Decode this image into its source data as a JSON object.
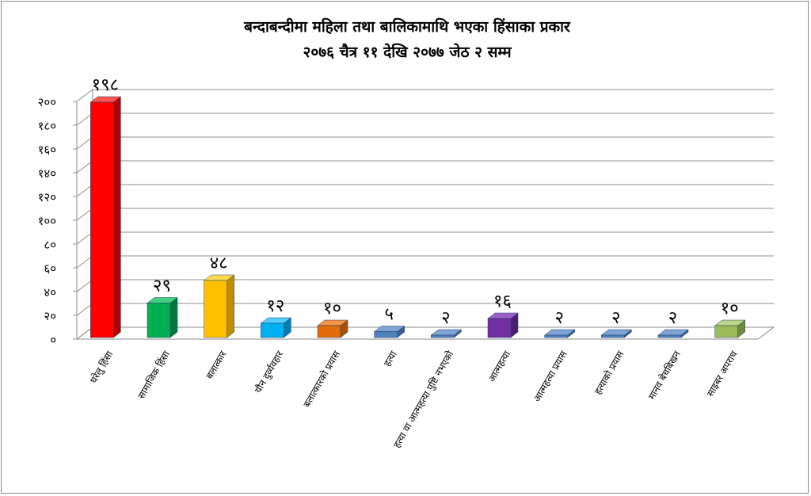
{
  "chart_data": {
    "type": "bar",
    "title": "बन्दाबन्दीमा महिला तथा बालिकामाथि भएका हिंसाका प्रकार",
    "subtitle": "२०७६ चैत्र ११ देखि २०७७ जेठ २ सम्म",
    "xlabel": "",
    "ylabel": "",
    "ylim": [
      0,
      200
    ],
    "yticks": [
      "०",
      "२०",
      "४०",
      "६०",
      "८०",
      "१००",
      "१२०",
      "१४०",
      "१६०",
      "१८०",
      "२००"
    ],
    "grid": true,
    "categories": [
      "घरेलु हिंसा",
      "सामाजिक हिंसा",
      "बलात्कार",
      "यौन दुर्व्यवहार",
      "बलात्कारको प्रयास",
      "हत्या",
      "हत्या वा आत्महत्या पुष्टि नभएको",
      "आत्महत्या",
      "आत्महत्या प्रयास",
      "हत्याको प्रयास",
      "मानव बेचबिखन",
      "साइबर अपराध"
    ],
    "values": [
      198,
      29,
      48,
      12,
      10,
      5,
      2,
      16,
      2,
      2,
      2,
      10
    ],
    "value_labels": [
      "१९८",
      "२९",
      "४८",
      "१२",
      "१०",
      "५",
      "२",
      "१६",
      "२",
      "२",
      "२",
      "१०"
    ],
    "colors": [
      {
        "front": "#ff0000",
        "side": "#b00000",
        "top": "#ff5050"
      },
      {
        "front": "#00b050",
        "side": "#007a36",
        "top": "#40d080"
      },
      {
        "front": "#ffc000",
        "side": "#c08e00",
        "top": "#ffd84d"
      },
      {
        "front": "#00b0f0",
        "side": "#007fb0",
        "top": "#55ccff"
      },
      {
        "front": "#e36c09",
        "side": "#a84f05",
        "top": "#f59445"
      },
      {
        "front": "#4f81bd",
        "side": "#365f90",
        "top": "#7ea3d4"
      },
      {
        "front": "#4f81bd",
        "side": "#365f90",
        "top": "#7ea3d4"
      },
      {
        "front": "#7030a0",
        "side": "#4e1f72",
        "top": "#9a60c8"
      },
      {
        "front": "#4f81bd",
        "side": "#365f90",
        "top": "#7ea3d4"
      },
      {
        "front": "#4f81bd",
        "side": "#365f90",
        "top": "#7ea3d4"
      },
      {
        "front": "#4f81bd",
        "side": "#365f90",
        "top": "#7ea3d4"
      },
      {
        "front": "#9bbb59",
        "side": "#6e8a3a",
        "top": "#bcd68a"
      }
    ]
  }
}
